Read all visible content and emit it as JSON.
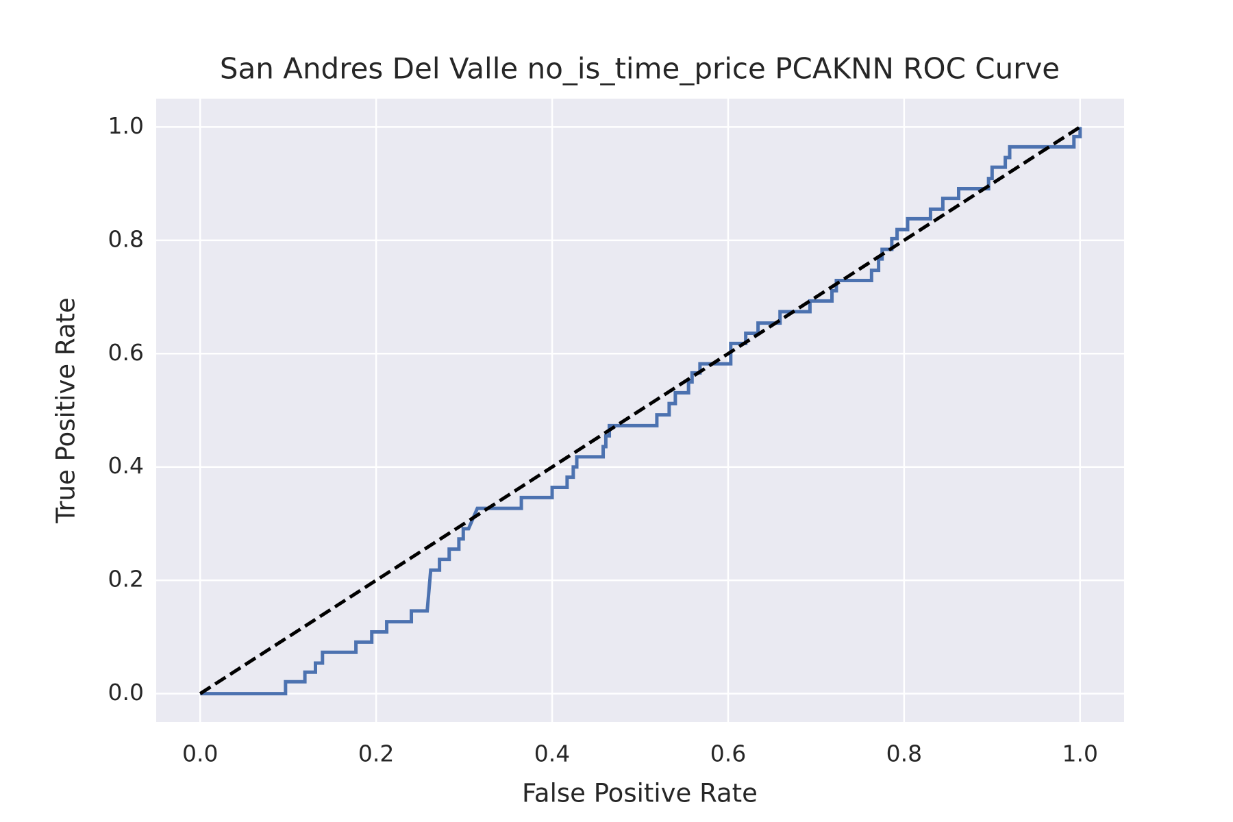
{
  "chart_data": {
    "type": "line",
    "title": "San Andres Del Valle no_is_time_price PCAKNN ROC Curve",
    "x_label": "False Positive Rate",
    "y_label": "True Positive Rate",
    "xlim": [
      -0.05,
      1.05
    ],
    "ylim": [
      -0.05,
      1.05
    ],
    "xticks": [
      {
        "value": 0,
        "label": "0.0"
      },
      0.2,
      0.4,
      0.6,
      0.8,
      {
        "value": 1,
        "label": "1.0"
      }
    ],
    "yticks": [
      {
        "value": 0,
        "label": "0.0"
      },
      0.2,
      0.4,
      0.6,
      0.8,
      {
        "value": 1,
        "label": "1.0"
      }
    ],
    "grid": true,
    "background": "#eaeaf2",
    "series": [
      {
        "color": "#4c72b0",
        "dash": "solid",
        "x": [
          0,
          0.097,
          0.097,
          0.119,
          0.119,
          0.131,
          0.131,
          0.139,
          0.139,
          0.177,
          0.177,
          0.195,
          0.195,
          0.212,
          0.212,
          0.24,
          0.24,
          0.258,
          0.26,
          0.262,
          0.272,
          0.272,
          0.283,
          0.283,
          0.294,
          0.294,
          0.299,
          0.299,
          0.305,
          0.315,
          0.365,
          0.365,
          0.4,
          0.4,
          0.417,
          0.417,
          0.424,
          0.424,
          0.428,
          0.428,
          0.458,
          0.458,
          0.461,
          0.461,
          0.465,
          0.465,
          0.519,
          0.519,
          0.533,
          0.533,
          0.54,
          0.54,
          0.555,
          0.555,
          0.559,
          0.559,
          0.568,
          0.568,
          0.603,
          0.603,
          0.62,
          0.62,
          0.634,
          0.634,
          0.659,
          0.659,
          0.693,
          0.693,
          0.718,
          0.718,
          0.723,
          0.723,
          0.763,
          0.763,
          0.771,
          0.771,
          0.775,
          0.775,
          0.786,
          0.786,
          0.792,
          0.792,
          0.804,
          0.804,
          0.83,
          0.83,
          0.844,
          0.844,
          0.862,
          0.862,
          0.896,
          0.896,
          0.9,
          0.9,
          0.915,
          0.915,
          0.92,
          0.92,
          0.993,
          0.993,
          1,
          1
        ],
        "y": [
          0,
          0,
          0.021,
          0.021,
          0.038,
          0.038,
          0.054,
          0.054,
          0.073,
          0.073,
          0.091,
          0.091,
          0.109,
          0.109,
          0.127,
          0.127,
          0.146,
          0.146,
          0.182,
          0.218,
          0.218,
          0.237,
          0.237,
          0.255,
          0.255,
          0.273,
          0.273,
          0.291,
          0.291,
          0.327,
          0.327,
          0.346,
          0.346,
          0.364,
          0.364,
          0.382,
          0.382,
          0.4,
          0.4,
          0.418,
          0.418,
          0.436,
          0.436,
          0.455,
          0.455,
          0.473,
          0.473,
          0.492,
          0.492,
          0.512,
          0.512,
          0.531,
          0.531,
          0.55,
          0.55,
          0.566,
          0.566,
          0.582,
          0.582,
          0.618,
          0.618,
          0.636,
          0.636,
          0.654,
          0.654,
          0.674,
          0.674,
          0.693,
          0.693,
          0.711,
          0.711,
          0.729,
          0.729,
          0.747,
          0.747,
          0.767,
          0.767,
          0.784,
          0.784,
          0.803,
          0.803,
          0.819,
          0.819,
          0.838,
          0.838,
          0.855,
          0.855,
          0.874,
          0.874,
          0.891,
          0.891,
          0.909,
          0.909,
          0.929,
          0.929,
          0.946,
          0.946,
          0.965,
          0.965,
          0.983,
          0.983,
          1
        ]
      },
      {
        "color": "#000000",
        "dash": "dashed",
        "x": [
          0,
          1
        ],
        "y": [
          0,
          1
        ]
      }
    ]
  }
}
